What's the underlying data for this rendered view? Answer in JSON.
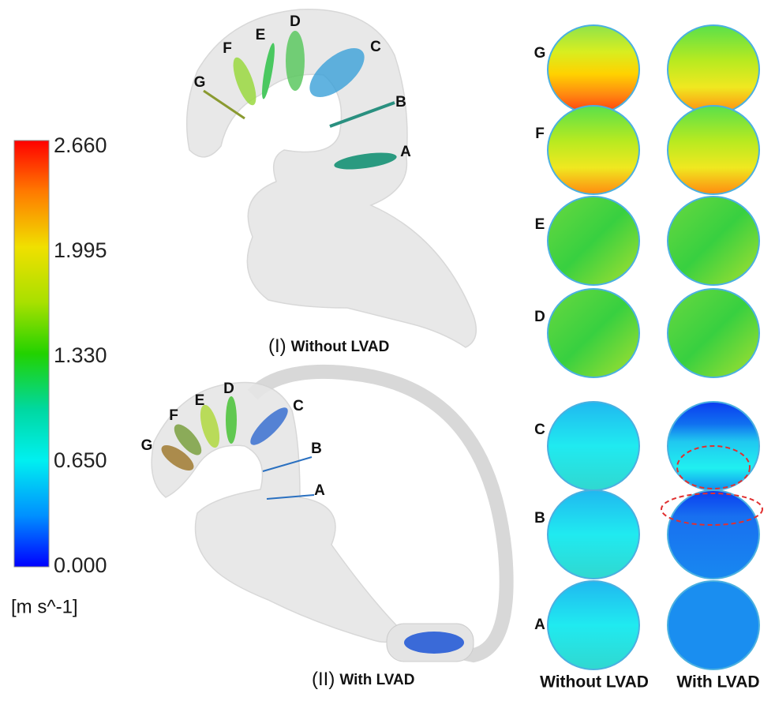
{
  "colorbar": {
    "ticks": [
      "2.660",
      "1.995",
      "1.330",
      "0.650",
      "0.000"
    ],
    "unit": "[m s^-1]"
  },
  "panel_1": {
    "numeral": "(I)",
    "caption": "Without LVAD",
    "sections": [
      "G",
      "F",
      "E",
      "D",
      "C",
      "B",
      "A"
    ]
  },
  "panel_2": {
    "numeral": "(II)",
    "caption": "With LVAD",
    "sections": [
      "G",
      "F",
      "E",
      "D",
      "C",
      "B",
      "A"
    ]
  },
  "cross_sections": {
    "rows": [
      "G",
      "F",
      "E",
      "D",
      "C",
      "B",
      "A"
    ],
    "columns": [
      "Without LVAD",
      "With LVAD"
    ]
  }
}
